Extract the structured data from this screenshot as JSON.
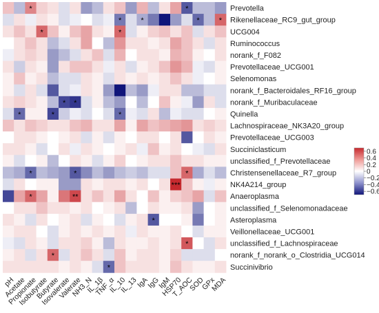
{
  "chart_data": {
    "type": "heatmap",
    "title": "",
    "xlabel": "",
    "ylabel": "",
    "x_labels": [
      "pH",
      "Acetate",
      "Propionate",
      "Isobutyrate",
      "Butyrate",
      "Isovalerate",
      "Valerate",
      "NH3_N",
      "IL_1β",
      "TNF_α",
      "IL_10",
      "IL_13",
      "IgA",
      "IgG",
      "IgM",
      "HSP70",
      "T_AOC",
      "SOD",
      "GPx",
      "MDA"
    ],
    "y_labels": [
      "Prevotella",
      "Rikenellaceae_RC9_gut_group",
      "UCG004",
      "Ruminococcus",
      "norank_f_F082",
      "Prevotellaceae_UCG001",
      "Selenomonas",
      "norank_f_Bacteroidales_RF16_group",
      "norank_f_Muribaculaceae",
      "Quinella",
      "Lachnospiraceae_NK3A20_group",
      "Prevotellaceae_UCG003",
      "Succiniclasticum",
      "unclassified_f_Prevotellaceae",
      "Christensenellaceae_R7_group",
      "NK4A214_group",
      "Anaeroplasma",
      "unclassified_f_Selenomonadaceae",
      "Asteroplasma",
      "Veillonellaceae_UCG001",
      "unclassified_f_Lachnospiraceae",
      "norank_f_norank_o_Clostridia_UCG014",
      "Succinivibrio"
    ],
    "values": [
      [
        0.2,
        -0.2,
        0.4,
        0.15,
        0.1,
        -0.1,
        0.1,
        -0.3,
        -0.2,
        0.1,
        0.2,
        -0.3,
        0.25,
        -0.2,
        0.1,
        0.3,
        -0.5,
        -0.2,
        -0.2,
        -0.3
      ],
      [
        -0.1,
        0.1,
        -0.05,
        0.1,
        0.05,
        -0.1,
        -0.05,
        0.0,
        -0.1,
        -0.05,
        -0.4,
        -0.1,
        -0.25,
        -0.4,
        -0.7,
        -0.3,
        -0.1,
        -0.45,
        -0.2,
        0.5
      ],
      [
        0.1,
        0.2,
        0.1,
        0.5,
        0.2,
        0.05,
        0.2,
        0.3,
        0.1,
        0.05,
        0.5,
        -0.1,
        0.05,
        0.15,
        0.2,
        0.1,
        0.2,
        -0.1,
        0.1,
        0.2
      ],
      [
        0.0,
        0.1,
        0.2,
        0.1,
        -0.2,
        -0.1,
        0.1,
        0.3,
        0.0,
        -0.2,
        0.35,
        0.1,
        0.1,
        0.05,
        0.1,
        0.3,
        0.2,
        0.1,
        -0.1,
        0.1
      ],
      [
        -0.05,
        0.1,
        0.15,
        0.1,
        -0.3,
        -0.2,
        -0.1,
        0.1,
        0.2,
        -0.1,
        0.25,
        0.0,
        0.1,
        0.1,
        0.05,
        0.25,
        0.2,
        0.05,
        0.0,
        0.1
      ],
      [
        0.1,
        -0.15,
        0.1,
        0.05,
        -0.3,
        0.1,
        0.2,
        0.2,
        0.1,
        -0.05,
        0.1,
        -0.1,
        0.05,
        0.1,
        0.2,
        0.35,
        0.25,
        -0.05,
        -0.1,
        0.05
      ],
      [
        0.05,
        0.2,
        0.05,
        0.1,
        -0.2,
        -0.1,
        -0.1,
        0.1,
        0.05,
        -0.1,
        0.1,
        0.05,
        0.1,
        0.05,
        0.1,
        0.2,
        0.1,
        -0.05,
        0.0,
        0.05
      ],
      [
        0.05,
        -0.1,
        0.1,
        -0.1,
        -0.5,
        -0.1,
        -0.05,
        0.1,
        0.05,
        -0.3,
        -0.75,
        -0.2,
        -0.3,
        -0.05,
        0.1,
        0.1,
        -0.2,
        -0.2,
        -0.1,
        -0.1
      ],
      [
        0.1,
        0.15,
        0.1,
        0.05,
        -0.2,
        -0.55,
        -0.6,
        -0.1,
        0.05,
        -0.2,
        -0.3,
        0.0,
        -0.2,
        0.0,
        0.2,
        0.05,
        -0.05,
        -0.3,
        0.1,
        -0.1
      ],
      [
        -0.1,
        -0.45,
        0.05,
        0.05,
        -0.55,
        -0.15,
        -0.05,
        -0.1,
        0.0,
        -0.1,
        -0.45,
        -0.05,
        -0.1,
        0.1,
        -0.2,
        -0.05,
        -0.1,
        -0.1,
        0.0,
        0.05
      ],
      [
        0.2,
        0.1,
        0.2,
        0.15,
        0.1,
        0.1,
        0.2,
        0.25,
        0.1,
        0.1,
        0.3,
        0.05,
        0.3,
        0.2,
        0.25,
        0.3,
        0.35,
        0.1,
        0.15,
        0.1
      ],
      [
        0.0,
        0.1,
        0.1,
        0.05,
        0.0,
        0.05,
        0.1,
        -0.1,
        0.05,
        -0.1,
        0.05,
        0.0,
        0.1,
        0.1,
        0.0,
        0.1,
        -0.5,
        0.0,
        0.1,
        0.05
      ],
      [
        0.1,
        0.1,
        0.05,
        -0.1,
        0.0,
        0.1,
        -0.05,
        0.1,
        0.05,
        0.0,
        0.05,
        0.1,
        -0.05,
        0.2,
        0.05,
        0.1,
        0.0,
        -0.05,
        -0.1,
        0.1
      ],
      [
        0.05,
        -0.1,
        0.0,
        0.05,
        -0.2,
        0.0,
        0.1,
        0.05,
        -0.1,
        0.05,
        0.15,
        0.0,
        0.05,
        0.1,
        0.1,
        0.2,
        0.1,
        0.1,
        0.05,
        0.05
      ],
      [
        -0.2,
        -0.25,
        -0.45,
        -0.2,
        -0.25,
        -0.3,
        -0.5,
        -0.35,
        -0.2,
        -0.3,
        -0.2,
        -0.15,
        -0.2,
        -0.1,
        -0.1,
        0.2,
        0.5,
        -0.25,
        -0.1,
        -0.2
      ],
      [
        -0.1,
        0.1,
        0.0,
        0.05,
        0.05,
        -0.3,
        -0.3,
        0.1,
        0.05,
        0.1,
        0.1,
        0.05,
        0.1,
        0.0,
        0.1,
        0.75,
        0.2,
        0.05,
        -0.05,
        0.05
      ],
      [
        -0.55,
        0.3,
        0.5,
        0.3,
        0.05,
        0.45,
        0.6,
        0.1,
        0.2,
        0.1,
        0.3,
        0.1,
        0.0,
        0.2,
        0.05,
        0.15,
        0.2,
        0.3,
        -0.1,
        0.2
      ],
      [
        0.0,
        0.1,
        0.1,
        0.2,
        0.1,
        0.1,
        0.05,
        0.1,
        0.0,
        0.05,
        0.1,
        -0.2,
        0.0,
        0.1,
        0.05,
        0.05,
        0.1,
        -0.3,
        0.0,
        0.05
      ],
      [
        0.1,
        0.05,
        -0.1,
        0.1,
        0.0,
        0.05,
        0.1,
        -0.1,
        0.05,
        0.0,
        -0.1,
        0.05,
        0.1,
        -0.5,
        0.0,
        0.0,
        0.05,
        -0.4,
        0.0,
        0.05
      ],
      [
        0.05,
        0.1,
        0.1,
        0.0,
        -0.1,
        0.05,
        0.1,
        0.05,
        0.1,
        0.05,
        0.1,
        -0.05,
        0.1,
        0.05,
        0.05,
        0.1,
        0.0,
        -0.1,
        0.05,
        0.05
      ],
      [
        -0.05,
        -0.1,
        0.1,
        0.05,
        -0.1,
        0.1,
        0.1,
        0.15,
        0.05,
        -0.2,
        0.1,
        0.05,
        0.05,
        0.1,
        0.05,
        0.1,
        0.55,
        0.0,
        -0.1,
        0.1
      ],
      [
        0.05,
        0.1,
        -0.1,
        0.1,
        0.5,
        -0.1,
        0.1,
        0.2,
        0.1,
        -0.1,
        0.2,
        0.05,
        0.1,
        0.1,
        0.05,
        0.15,
        -0.1,
        -0.1,
        -0.1,
        0.0
      ],
      [
        0.1,
        0.1,
        0.1,
        0.1,
        0.1,
        0.05,
        0.1,
        0.05,
        -0.1,
        -0.45,
        0.2,
        0.1,
        0.1,
        0.1,
        0.05,
        0.2,
        0.1,
        0.05,
        0.05,
        0.1
      ]
    ],
    "significance": [
      {
        "row": 0,
        "col": 2,
        "label": "*"
      },
      {
        "row": 0,
        "col": 16,
        "label": "*"
      },
      {
        "row": 1,
        "col": 10,
        "label": "*"
      },
      {
        "row": 1,
        "col": 12,
        "label": "*"
      },
      {
        "row": 1,
        "col": 17,
        "label": "*"
      },
      {
        "row": 1,
        "col": 19,
        "label": "*"
      },
      {
        "row": 2,
        "col": 3,
        "label": "*"
      },
      {
        "row": 2,
        "col": 10,
        "label": "*"
      },
      {
        "row": 8,
        "col": 5,
        "label": "*"
      },
      {
        "row": 8,
        "col": 6,
        "label": "*"
      },
      {
        "row": 9,
        "col": 1,
        "label": "*"
      },
      {
        "row": 9,
        "col": 4,
        "label": "*"
      },
      {
        "row": 9,
        "col": 10,
        "label": "*"
      },
      {
        "row": 14,
        "col": 2,
        "label": "*"
      },
      {
        "row": 14,
        "col": 6,
        "label": "*"
      },
      {
        "row": 14,
        "col": 16,
        "label": "*"
      },
      {
        "row": 15,
        "col": 15,
        "label": "***"
      },
      {
        "row": 16,
        "col": 2,
        "label": "*"
      },
      {
        "row": 16,
        "col": 6,
        "label": "**"
      },
      {
        "row": 18,
        "col": 13,
        "label": "*"
      },
      {
        "row": 20,
        "col": 16,
        "label": "*"
      },
      {
        "row": 21,
        "col": 4,
        "label": "*"
      },
      {
        "row": 22,
        "col": 9,
        "label": "*"
      }
    ],
    "colorbar": {
      "ticks": [
        0.6,
        0.4,
        0.2,
        0,
        -0.2,
        -0.4,
        -0.6
      ],
      "tick_labels": [
        "0.6",
        "0.4",
        "0.2",
        "0",
        "−0.2",
        "−0.4",
        "−0.6"
      ],
      "range": [
        -0.7,
        0.7
      ],
      "colors": {
        "high": "#c62a2f",
        "mid": "#ffffff",
        "low": "#10157a"
      },
      "placement": "right"
    },
    "grid": false
  }
}
